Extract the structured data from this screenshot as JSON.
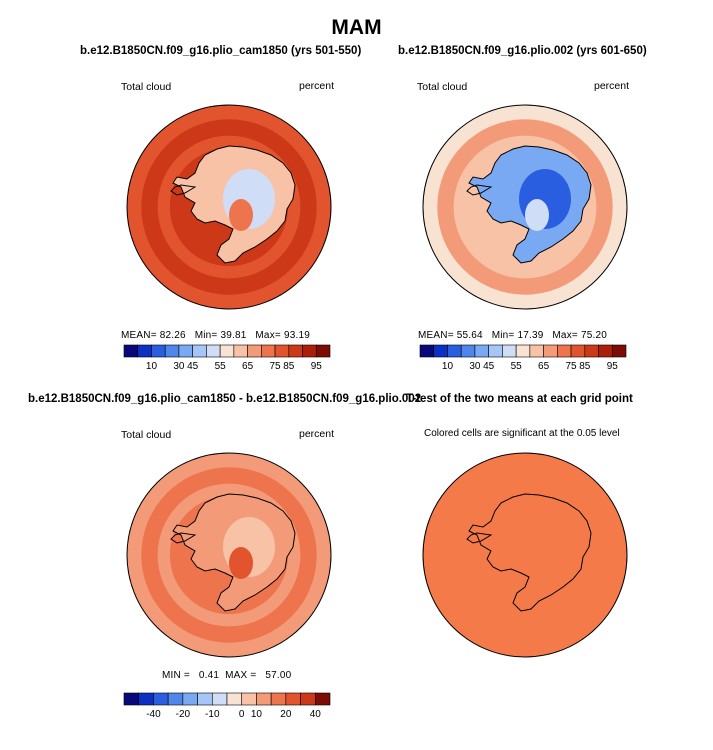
{
  "page": {
    "title": "MAM"
  },
  "panels": [
    {
      "title": "b.e12.B1850CN.f09_g16.plio_cam1850 (yrs 501-550)",
      "left_label": "Total cloud",
      "right_label": "percent",
      "stats": {
        "mean_label": "MEAN=",
        "mean": "82.26",
        "min_label": "Min=",
        "min": "39.81",
        "max_label": "Max=",
        "max": "93.19"
      },
      "colorbar_ticks": [
        "10",
        "30",
        "45",
        "55",
        "65",
        "75",
        "85",
        "95"
      ],
      "ocean_level": 0.82,
      "land_level": 0.45
    },
    {
      "title": "b.e12.B1850CN.f09_g16.plio.002 (yrs 601-650)",
      "left_label": "Total cloud",
      "right_label": "percent",
      "stats": {
        "mean_label": "MEAN=",
        "mean": "55.64",
        "min_label": "Min=",
        "min": "17.39",
        "max_label": "Max=",
        "max": "75.20"
      },
      "colorbar_ticks": [
        "10",
        "30",
        "45",
        "55",
        "65",
        "75",
        "85",
        "95"
      ],
      "ocean_level": 0.56,
      "land_level": 0.17
    },
    {
      "title": "b.e12.B1850CN.f09_g16.plio_cam1850 - b.e12.B1850CN.f09_g16.plio.002",
      "left_label": "Total cloud",
      "right_label": "percent",
      "stats": {
        "min_label": "MIN =",
        "min": "0.41",
        "max_label": "MAX =",
        "max": "57.00"
      },
      "colorbar_ticks": [
        "-40",
        "-20",
        "-10",
        "0",
        "10",
        "20",
        "40"
      ],
      "ocean_level": 0.74,
      "land_level": 0.6
    },
    {
      "title": "T-test of the two means at each grid point",
      "subtitle": "Colored cells are significant at the 0.05 level",
      "fill_color": "#f57a4a"
    }
  ],
  "colors": {
    "abs_scale": [
      "#08087a",
      "#0c2fc4",
      "#2a5ee0",
      "#4f86ec",
      "#7aa9f4",
      "#a6c6f7",
      "#cfddf7",
      "#f8e3d3",
      "#f7c2a6",
      "#f39b78",
      "#ee744e",
      "#e2542e",
      "#cc3818",
      "#aa1e0a",
      "#7d0c05"
    ],
    "diff_scale": [
      "#08087a",
      "#0c2fc4",
      "#2a5ee0",
      "#4f86ec",
      "#7aa9f4",
      "#a6c6f7",
      "#cfddf7",
      "#f8e3d3",
      "#f7c2a6",
      "#f39b78",
      "#ee744e",
      "#e2542e",
      "#cc3818",
      "#7d0c05"
    ],
    "coast": "#000000"
  }
}
